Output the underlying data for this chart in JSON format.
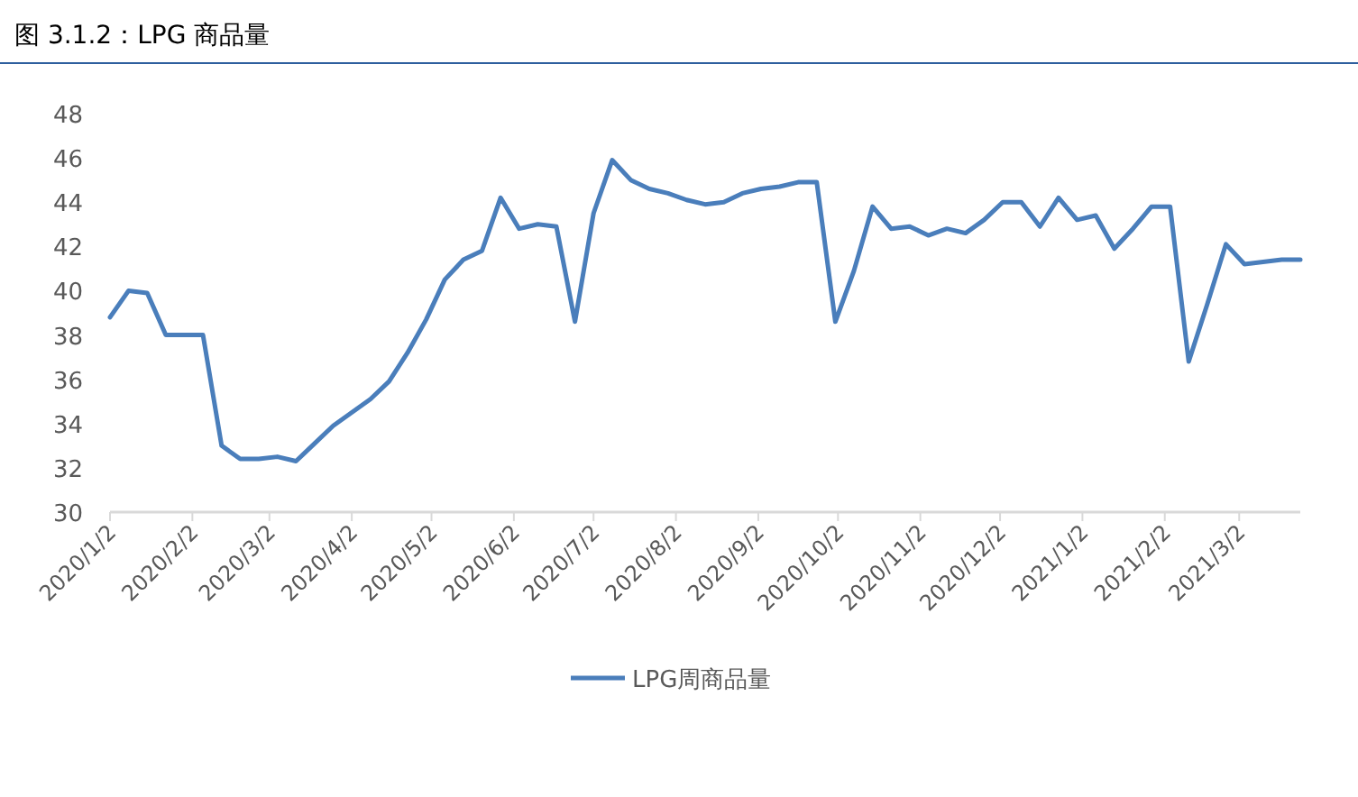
{
  "chart_data": {
    "type": "line",
    "title": "图 3.1.2：LPG 商品量",
    "x": [
      "2020-01-02",
      "2020-01-09",
      "2020-01-16",
      "2020-01-23",
      "2020-01-30",
      "2020-02-06",
      "2020-02-13",
      "2020-02-20",
      "2020-02-27",
      "2020-03-05",
      "2020-03-12",
      "2020-03-19",
      "2020-03-26",
      "2020-04-02",
      "2020-04-09",
      "2020-04-16",
      "2020-04-23",
      "2020-04-30",
      "2020-05-07",
      "2020-05-14",
      "2020-05-21",
      "2020-05-28",
      "2020-06-04",
      "2020-06-11",
      "2020-06-18",
      "2020-06-25",
      "2020-07-02",
      "2020-07-09",
      "2020-07-16",
      "2020-07-23",
      "2020-07-30",
      "2020-08-06",
      "2020-08-13",
      "2020-08-20",
      "2020-08-27",
      "2020-09-03",
      "2020-09-10",
      "2020-09-17",
      "2020-09-24",
      "2020-10-01",
      "2020-10-08",
      "2020-10-15",
      "2020-10-22",
      "2020-10-29",
      "2020-11-05",
      "2020-11-12",
      "2020-11-19",
      "2020-11-26",
      "2020-12-03",
      "2020-12-10",
      "2020-12-17",
      "2020-12-24",
      "2020-12-31",
      "2021-01-07",
      "2021-01-14",
      "2021-01-21",
      "2021-01-28",
      "2021-02-04",
      "2021-02-11",
      "2021-02-18",
      "2021-02-25",
      "2021-03-04",
      "2021-03-11",
      "2021-03-18",
      "2021-03-25"
    ],
    "series": [
      {
        "name": "LPG周商品量",
        "color": "#4a7ebb",
        "values": [
          38.8,
          40.0,
          39.9,
          38.0,
          38.0,
          38.0,
          33.0,
          32.4,
          32.4,
          32.5,
          32.3,
          33.1,
          33.9,
          34.5,
          35.1,
          35.9,
          37.2,
          38.7,
          40.5,
          41.4,
          41.8,
          44.2,
          42.8,
          43.0,
          42.9,
          38.6,
          43.5,
          45.9,
          45.0,
          44.6,
          44.4,
          44.1,
          43.9,
          44.0,
          44.4,
          44.6,
          44.7,
          44.9,
          44.9,
          38.6,
          40.9,
          43.8,
          42.8,
          42.9,
          42.5,
          42.8,
          42.6,
          43.2,
          44.0,
          44.0,
          42.9,
          44.2,
          43.2,
          43.4,
          41.9,
          42.8,
          43.8,
          43.8,
          36.8,
          39.4,
          42.1,
          41.2,
          41.3,
          41.4,
          41.4
        ]
      }
    ],
    "xlim": [
      "2020-01-02",
      "2021-03-25"
    ],
    "xticks": [
      {
        "value": "2020-01-02",
        "label": "2020/1/2"
      },
      {
        "value": "2020-02-02",
        "label": "2020/2/2"
      },
      {
        "value": "2020-03-02",
        "label": "2020/3/2"
      },
      {
        "value": "2020-04-02",
        "label": "2020/4/2"
      },
      {
        "value": "2020-05-02",
        "label": "2020/5/2"
      },
      {
        "value": "2020-06-02",
        "label": "2020/6/2"
      },
      {
        "value": "2020-07-02",
        "label": "2020/7/2"
      },
      {
        "value": "2020-08-02",
        "label": "2020/8/2"
      },
      {
        "value": "2020-09-02",
        "label": "2020/9/2"
      },
      {
        "value": "2020-10-02",
        "label": "2020/10/2"
      },
      {
        "value": "2020-11-02",
        "label": "2020/11/2"
      },
      {
        "value": "2020-12-02",
        "label": "2020/12/2"
      },
      {
        "value": "2021-01-02",
        "label": "2021/1/2"
      },
      {
        "value": "2021-02-02",
        "label": "2021/2/2"
      },
      {
        "value": "2021-03-02",
        "label": "2021/3/2"
      }
    ],
    "ylim": [
      30,
      48
    ],
    "yticks": [
      30,
      32,
      34,
      36,
      38,
      40,
      42,
      44,
      46,
      48
    ],
    "grid": false,
    "legend": "bottom",
    "marker": "none",
    "line_style": "solid"
  }
}
